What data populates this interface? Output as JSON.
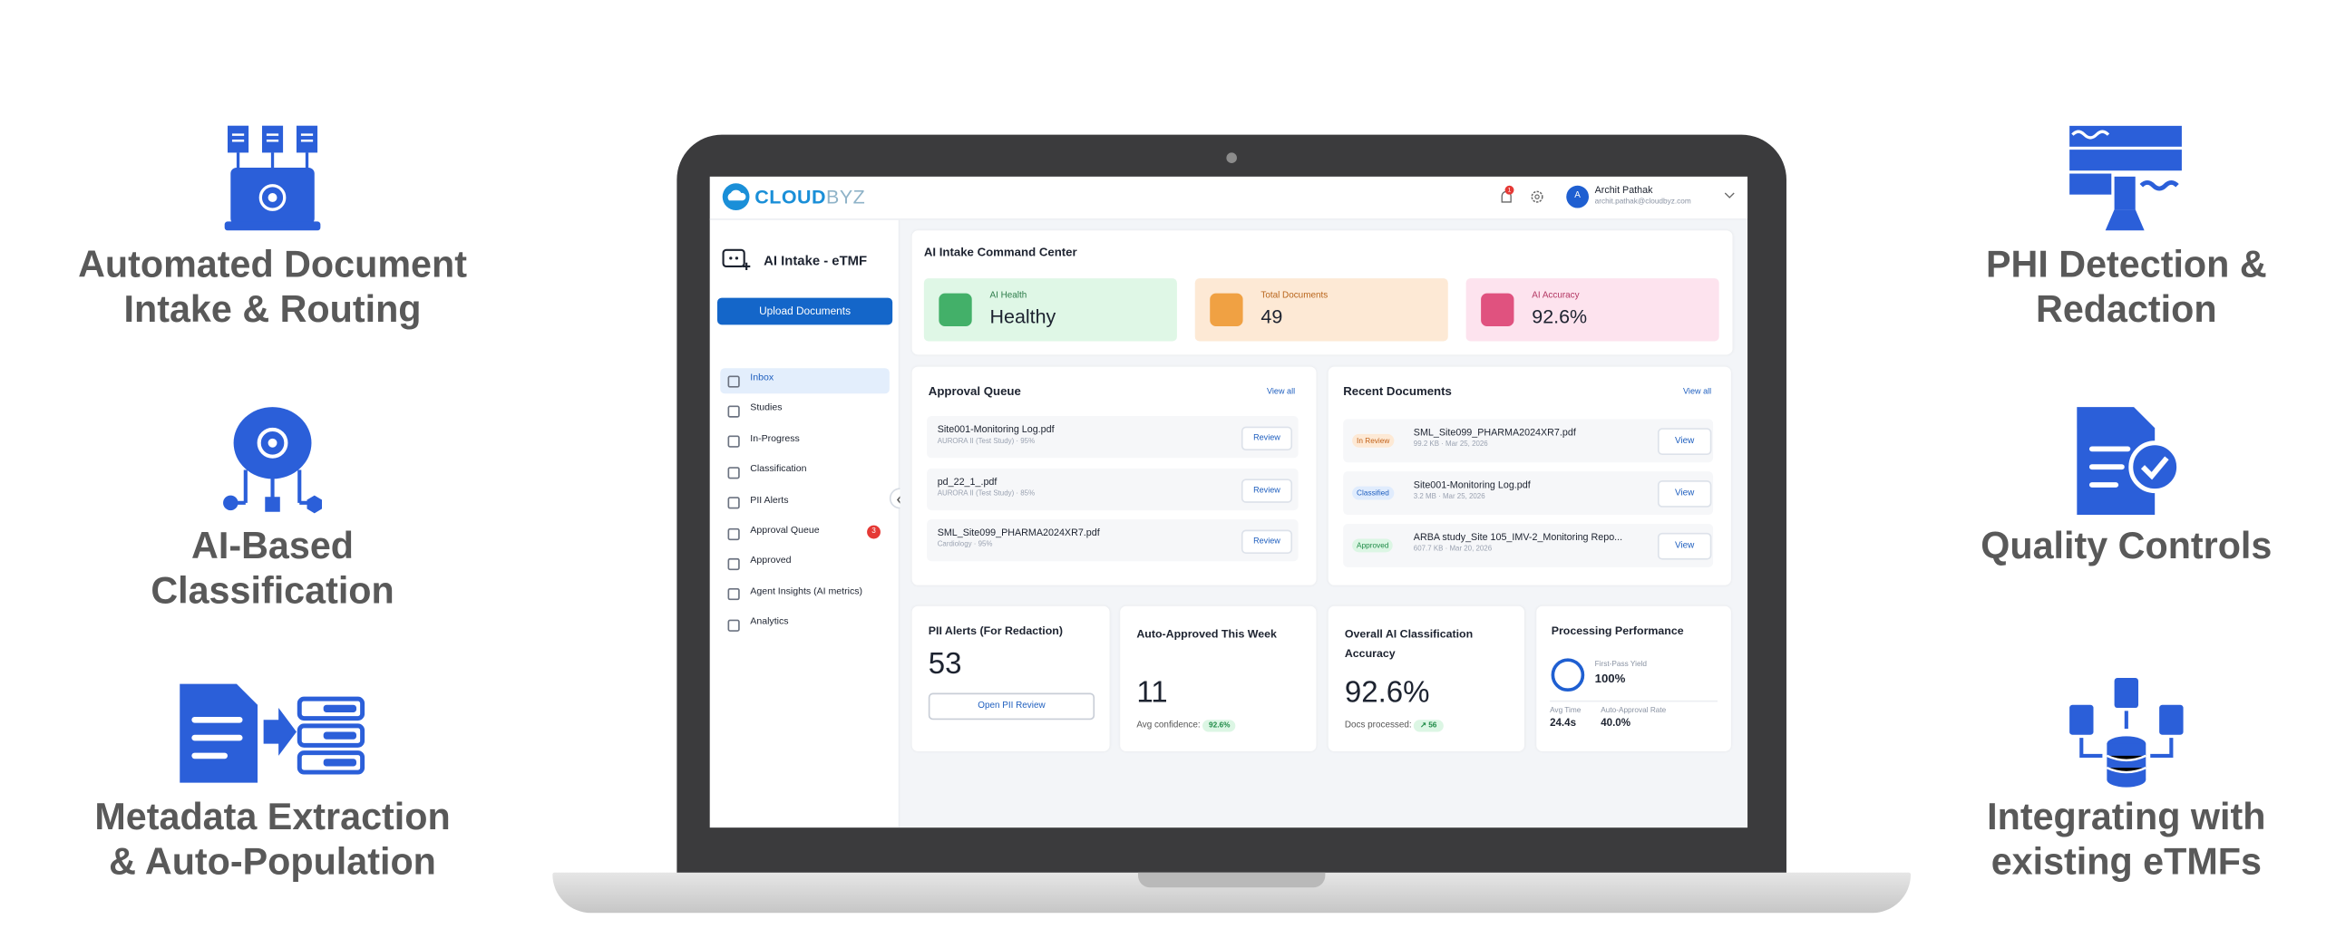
{
  "features_left": [
    {
      "lines": [
        "Automated Document",
        "Intake & Routing"
      ]
    },
    {
      "lines": [
        "AI-Based",
        "Classification"
      ]
    },
    {
      "lines": [
        "Metadata Extraction",
        "& Auto-Population"
      ]
    }
  ],
  "features_right": [
    {
      "lines": [
        "PHI Detection &",
        "Redaction"
      ]
    },
    {
      "lines": [
        "Quality Controls"
      ]
    },
    {
      "lines": [
        "Integrating with",
        "existing eTMFs"
      ]
    }
  ],
  "app": {
    "header": {
      "logo_primary": "CLOUD",
      "logo_secondary": "BYZ",
      "notification_count": "1",
      "avatar": "A",
      "user_name": "Archit Pathak",
      "user_email": "archit.pathak@cloudbyz.com"
    },
    "sidebar": {
      "title": "AI Intake - eTMF",
      "upload_button": "Upload Documents",
      "nav": [
        {
          "label": "Inbox"
        },
        {
          "label": "Studies"
        },
        {
          "label": "In-Progress"
        },
        {
          "label": "Classification"
        },
        {
          "label": "PII Alerts"
        },
        {
          "label": "Approval Queue",
          "badge": "3"
        },
        {
          "label": "Approved"
        },
        {
          "label": "Agent Insights (AI metrics)"
        },
        {
          "label": "Analytics"
        }
      ]
    },
    "command_center": {
      "title": "AI Intake Command Center",
      "cards": [
        {
          "label": "AI Health",
          "value": "Healthy"
        },
        {
          "label": "Total Documents",
          "value": "49"
        },
        {
          "label": "AI Accuracy",
          "value": "92.6%"
        }
      ]
    },
    "approval_queue": {
      "title": "Approval Queue",
      "view_all": "View all",
      "items": [
        {
          "name": "Site001-Monitoring Log.pdf",
          "meta": "AURORA II (Test Study) · 95%",
          "action": "Review"
        },
        {
          "name": "pd_22_1_.pdf",
          "meta": "AURORA II (Test Study) · 85%",
          "action": "Review"
        },
        {
          "name": "SML_Site099_PHARMA2024XR7.pdf",
          "meta": "Cardiology · 95%",
          "action": "Review"
        }
      ]
    },
    "recent_documents": {
      "title": "Recent Documents",
      "view_all": "View all",
      "items": [
        {
          "status": "In Review",
          "name": "SML_Site099_PHARMA2024XR7.pdf",
          "meta": "99.2 KB · Mar 25, 2026",
          "action": "View"
        },
        {
          "status": "Classified",
          "name": "Site001-Monitoring Log.pdf",
          "meta": "3.2 MB · Mar 25, 2026",
          "action": "View"
        },
        {
          "status": "Approved",
          "name": "ARBA study_Site 105_IMV-2_Monitoring Repo...",
          "meta": "607.7 KB · Mar 20, 2026",
          "action": "View"
        }
      ]
    },
    "pii_alerts": {
      "title": "PII Alerts (For Redaction)",
      "value": "53",
      "button": "Open PII Review"
    },
    "auto_approved": {
      "title": "Auto-Approved This Week",
      "value": "11",
      "note": "Avg confidence:",
      "pill": "92.6%"
    },
    "classification_accuracy": {
      "title": "Overall AI Classification Accuracy",
      "value": "92.6%",
      "note": "Docs processed:",
      "pill": "↗ 56"
    },
    "processing_performance": {
      "title": "Processing Performance",
      "first_pass_label": "First-Pass Yield",
      "first_pass_value": "100%",
      "avg_time_label": "Avg Time",
      "avg_time_value": "24.4s",
      "auto_approval_label": "Auto-Approval Rate",
      "auto_approval_value": "40.0%"
    }
  }
}
